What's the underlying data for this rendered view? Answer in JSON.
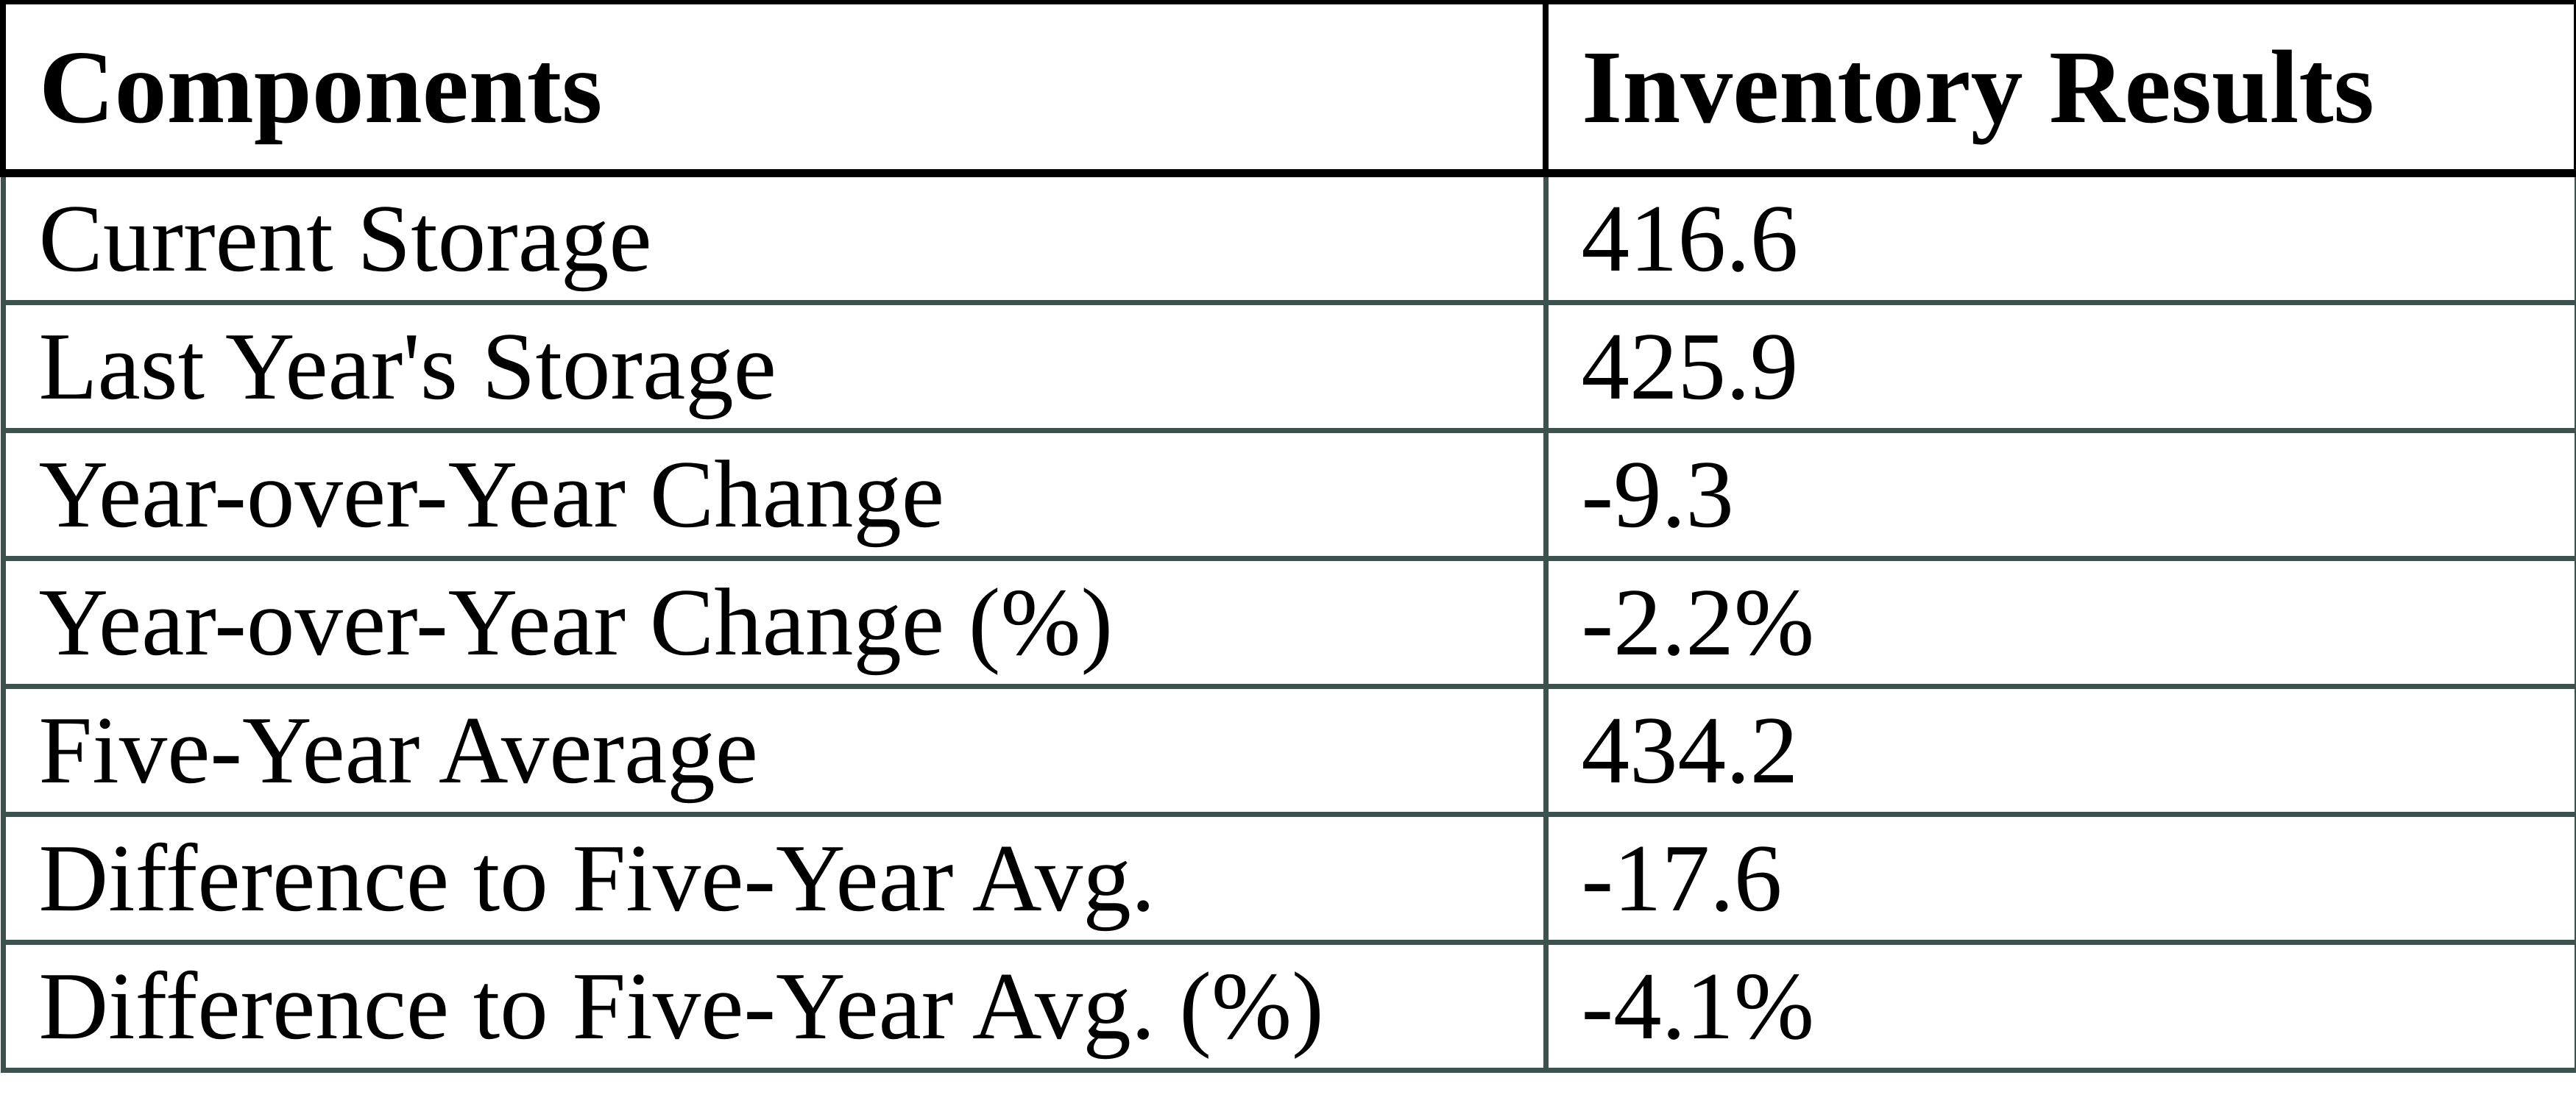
{
  "table": {
    "columns": [
      "Components",
      "Inventory Results"
    ],
    "rows": [
      {
        "label": "Current Storage",
        "value": "416.6"
      },
      {
        "label": "Last Year's Storage",
        "value": "425.9"
      },
      {
        "label": "Year-over-Year Change",
        "value": "-9.3"
      },
      {
        "label": "Year-over-Year Change (%)",
        "value": "-2.2%"
      },
      {
        "label": "Five-Year Average",
        "value": "434.2"
      },
      {
        "label": "Difference to Five-Year Avg.",
        "value": "-17.6"
      },
      {
        "label": "Difference to Five-Year Avg. (%)",
        "value": "-4.1%"
      }
    ],
    "colors": {
      "header_border": "#000000",
      "body_border": "#3d514e",
      "background": "#ffffff",
      "text": "#000000"
    }
  },
  "chart_data": {
    "type": "table",
    "title": "",
    "columns": [
      "Components",
      "Inventory Results"
    ],
    "rows": [
      [
        "Current Storage",
        "416.6"
      ],
      [
        "Last Year's Storage",
        "425.9"
      ],
      [
        "Year-over-Year Change",
        "-9.3"
      ],
      [
        "Year-over-Year Change (%)",
        "-2.2%"
      ],
      [
        "Five-Year Average",
        "434.2"
      ],
      [
        "Difference to Five-Year Avg.",
        "-17.6"
      ],
      [
        "Difference to Five-Year Avg. (%)",
        "-4.1%"
      ]
    ]
  }
}
